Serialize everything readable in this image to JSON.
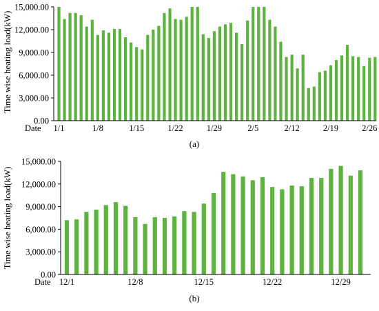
{
  "chart_data": [
    {
      "type": "bar",
      "panel_label": "(a)",
      "title": "",
      "xlabel": "Date",
      "ylabel": "Time wise heating load(kW)",
      "ylim": [
        0,
        15000
      ],
      "yticks": [
        "0.00",
        "3,000.00",
        "6,000.00",
        "9,000.00",
        "12,000.00",
        "15,000.00"
      ],
      "ytick_values": [
        0,
        3000,
        6000,
        9000,
        12000,
        15000
      ],
      "xtick_labels": [
        {
          "label": "1/1",
          "index": 0
        },
        {
          "label": "1/8",
          "index": 7
        },
        {
          "label": "1/15",
          "index": 14
        },
        {
          "label": "1/22",
          "index": 21
        },
        {
          "label": "1/29",
          "index": 28
        },
        {
          "label": "2/5",
          "index": 35
        },
        {
          "label": "2/12",
          "index": 42
        },
        {
          "label": "2/19",
          "index": 49
        },
        {
          "label": "2/26",
          "index": 56
        }
      ],
      "grid": false,
      "bar_color": "#5cb33d",
      "values": [
        15000,
        13400,
        14200,
        14200,
        13900,
        12400,
        13300,
        11300,
        11900,
        11600,
        12100,
        12100,
        11000,
        10300,
        9700,
        9400,
        11300,
        12000,
        12500,
        14200,
        14800,
        13400,
        13300,
        13700,
        15000,
        15000,
        11400,
        10900,
        11800,
        12400,
        12700,
        12900,
        11600,
        10100,
        13200,
        15000,
        15000,
        15000,
        13300,
        12400,
        10400,
        8400,
        8700,
        6900,
        8700,
        4300,
        4500,
        6400,
        6600,
        7300,
        8000,
        8600,
        10000,
        8500,
        8400,
        7200,
        8300,
        8400,
        8300
      ]
    },
    {
      "type": "bar",
      "panel_label": "(b)",
      "title": "",
      "xlabel": "Date",
      "ylabel": "Time wise heating load(kW)",
      "ylim": [
        0,
        15000
      ],
      "yticks": [
        "0.00",
        "3,000.00",
        "6,000.00",
        "9,000.00",
        "12,000.00",
        "15,000.00"
      ],
      "ytick_values": [
        0,
        3000,
        6000,
        9000,
        12000,
        15000
      ],
      "xtick_labels": [
        {
          "label": "12/1",
          "index": 0
        },
        {
          "label": "12/8",
          "index": 7
        },
        {
          "label": "12/15",
          "index": 14
        },
        {
          "label": "12/22",
          "index": 21
        },
        {
          "label": "12/29",
          "index": 28
        }
      ],
      "grid": false,
      "bar_color": "#5cb33d",
      "values": [
        7200,
        7300,
        8300,
        8600,
        9200,
        9600,
        9100,
        7600,
        6700,
        7600,
        7500,
        7700,
        8400,
        8300,
        9400,
        10800,
        13600,
        13300,
        13000,
        12500,
        12900,
        11600,
        11300,
        11800,
        11700,
        12800,
        12800,
        14000,
        14400,
        13100,
        13800
      ]
    }
  ]
}
